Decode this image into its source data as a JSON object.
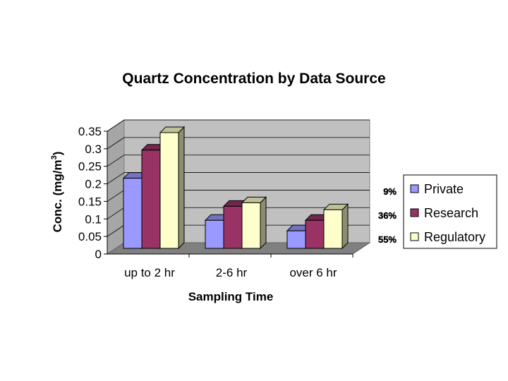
{
  "chart_data": {
    "type": "bar",
    "title": "Quartz Concentration by Data Source",
    "xlabel": "Sampling Time",
    "ylabel": "Conc. (mg/m",
    "ylabel_superscript": "3",
    "ylabel_suffix": ")",
    "categories": [
      "up to 2 hr",
      "2-6 hr",
      "over 6 hr"
    ],
    "yticks": [
      "0",
      "0.05",
      "0.1",
      "0.15",
      "0.2",
      "0.25",
      "0.3",
      "0.35"
    ],
    "ylim": [
      0,
      0.35
    ],
    "grid": true,
    "legend_position": "right",
    "series": [
      {
        "name": "Private",
        "color": "#9999ff",
        "values": [
          0.2,
          0.08,
          0.05
        ]
      },
      {
        "name": "Research",
        "color": "#993366",
        "values": [
          0.28,
          0.12,
          0.08
        ]
      },
      {
        "name": "Regulatory",
        "color": "#ffffcc",
        "values": [
          0.33,
          0.13,
          0.11
        ]
      }
    ],
    "annotations": [
      "9%",
      "36%",
      "55%"
    ]
  }
}
